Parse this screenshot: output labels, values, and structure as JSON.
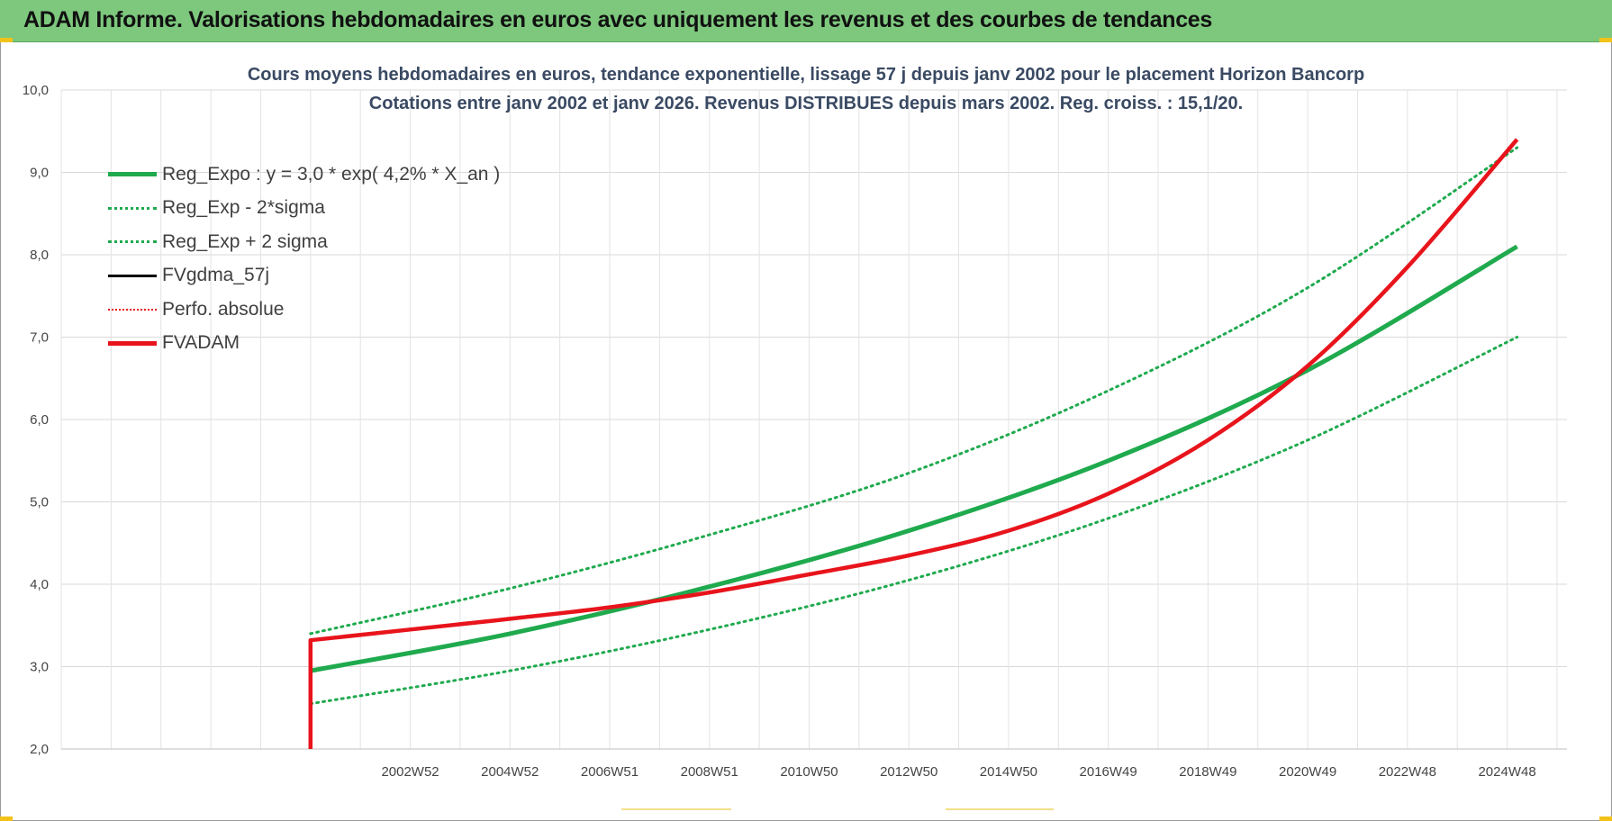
{
  "banner": {
    "title": "ADAM Informe. Valorisations hebdomadaires en euros avec uniquement les revenus et des courbes de tendances"
  },
  "colors": {
    "banner": "#7dc87d",
    "trend_green": "#1faa4e",
    "adam_red": "#e8141c",
    "black": "#000000"
  },
  "chart_data": {
    "type": "line",
    "title_lines": [
      "Cours moyens hebdomadaires en euros, tendance exponentielle, lissage 57 j depuis janv 2002  pour le placement Horizon Bancorp",
      "Cotations entre janv 2002 et janv 2026. Revenus DISTRIBUES depuis mars 2002. Reg. croiss. : 15,1/20."
    ],
    "x_tick_labels": [
      "2002W52",
      "2004W52",
      "2006W51",
      "2008W51",
      "2010W50",
      "2012W50",
      "2014W50",
      "2016W49",
      "2018W49",
      "2020W49",
      "2022W48",
      "2024W48"
    ],
    "x_year_range": [
      1996.0,
      2026.2
    ],
    "ylim": [
      2.0,
      10.0
    ],
    "y_ticks": [
      "2,0",
      "3,0",
      "4,0",
      "5,0",
      "6,0",
      "7,0",
      "8,0",
      "9,0",
      "10,0"
    ],
    "grid": true,
    "legend_position": "top-left",
    "legend": [
      {
        "name": "Reg_Expo : y = 3,0 * exp( 4,2% *  X_an )",
        "color": "#1faa4e",
        "style": "solid-thick"
      },
      {
        "name": "Reg_Exp - 2*sigma",
        "color": "#1faa4e",
        "style": "dotted"
      },
      {
        "name": "Reg_Exp + 2 sigma",
        "color": "#1faa4e",
        "style": "dotted"
      },
      {
        "name": "FVgdma_57j",
        "color": "#000000",
        "style": "solid"
      },
      {
        "name": "Perfo. absolue",
        "color": "#e8141c",
        "style": "dotted"
      },
      {
        "name": "FVADAM",
        "color": "#e8141c",
        "style": "solid-thick"
      }
    ],
    "series": [
      {
        "name": "Reg_Expo : y = 3,0 * exp( 4,2% *  X_an )",
        "x": [
          2001.0,
          2005.0,
          2009.0,
          2013.0,
          2017.0,
          2021.0,
          2025.2
        ],
        "y": [
          2.95,
          3.4,
          3.97,
          4.65,
          5.5,
          6.6,
          8.1
        ]
      },
      {
        "name": "Reg_Exp - 2*sigma",
        "x": [
          2001.0,
          2005.0,
          2009.0,
          2013.0,
          2017.0,
          2021.0,
          2025.2
        ],
        "y": [
          2.55,
          2.95,
          3.45,
          4.05,
          4.8,
          5.75,
          7.0
        ]
      },
      {
        "name": "Reg_Exp + 2 sigma",
        "x": [
          2001.0,
          2005.0,
          2009.0,
          2013.0,
          2017.0,
          2021.0,
          2025.2
        ],
        "y": [
          3.4,
          3.95,
          4.6,
          5.35,
          6.35,
          7.6,
          9.3
        ]
      },
      {
        "name": "FVADAM",
        "x": [
          2001.0,
          2001.0,
          2003.0,
          2005.0,
          2007.0,
          2009.0,
          2011.0,
          2013.0,
          2015.0,
          2017.0,
          2019.0,
          2021.0,
          2023.0,
          2025.2
        ],
        "y": [
          2.0,
          3.32,
          3.45,
          3.58,
          3.72,
          3.9,
          4.12,
          4.35,
          4.65,
          5.1,
          5.75,
          6.65,
          7.85,
          9.4
        ]
      }
    ]
  }
}
